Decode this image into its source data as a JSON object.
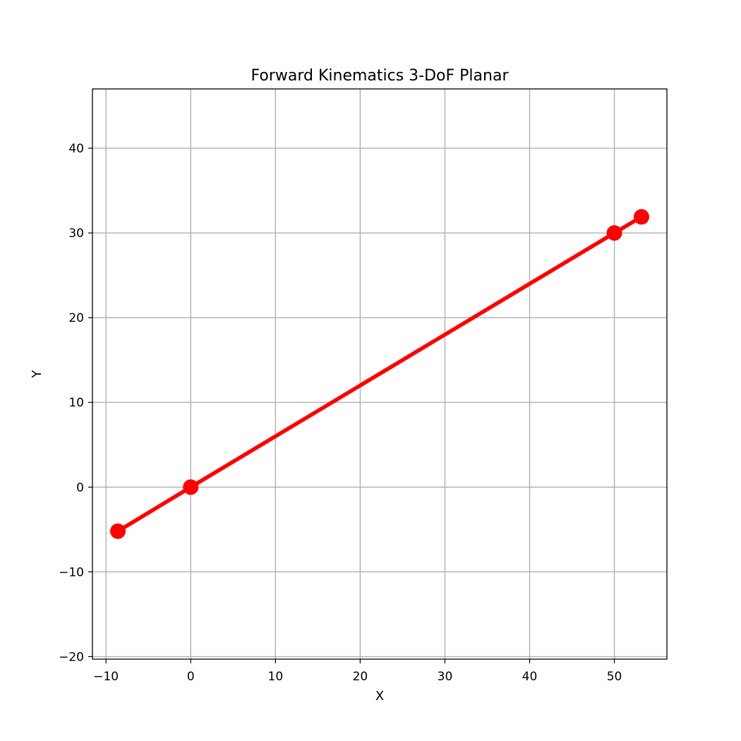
{
  "chart_data": {
    "type": "line",
    "title": "Forward Kinematics 3-DoF Planar",
    "xlabel": "X",
    "ylabel": "Y",
    "xlim": [
      -11.6,
      56.2
    ],
    "ylim": [
      -20.3,
      47.0
    ],
    "xticks": [
      -10,
      0,
      10,
      20,
      30,
      40,
      50
    ],
    "yticks": [
      -20,
      -10,
      0,
      10,
      20,
      30,
      40
    ],
    "xtick_labels": [
      "−10",
      "0",
      "10",
      "20",
      "30",
      "40",
      "50"
    ],
    "ytick_labels": [
      "−20",
      "−10",
      "0",
      "10",
      "20",
      "30",
      "40"
    ],
    "grid": true,
    "series": [
      {
        "color": "#ff0000",
        "marker": "circle",
        "x": [
          -8.6,
          0,
          50,
          53.2
        ],
        "y": [
          -5.2,
          0,
          30,
          31.9
        ]
      }
    ]
  }
}
